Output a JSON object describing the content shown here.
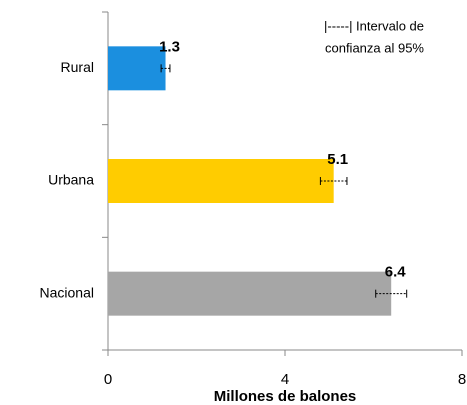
{
  "chart_data": {
    "type": "bar",
    "orientation": "horizontal",
    "categories": [
      "Rural",
      "Urbana",
      "Nacional"
    ],
    "values": [
      1.3,
      5.1,
      6.4
    ],
    "errors": [
      0.1,
      0.3,
      0.35
    ],
    "colors": [
      "#1b8fdf",
      "#ffcc00",
      "#a6a6a6"
    ],
    "xlim": [
      0,
      8
    ],
    "xticks": [
      0,
      4,
      8
    ],
    "xlabel": "Millones de balones",
    "annotation": [
      "|-----| Intervalo de",
      "confianza al 95%"
    ],
    "grid": false
  }
}
